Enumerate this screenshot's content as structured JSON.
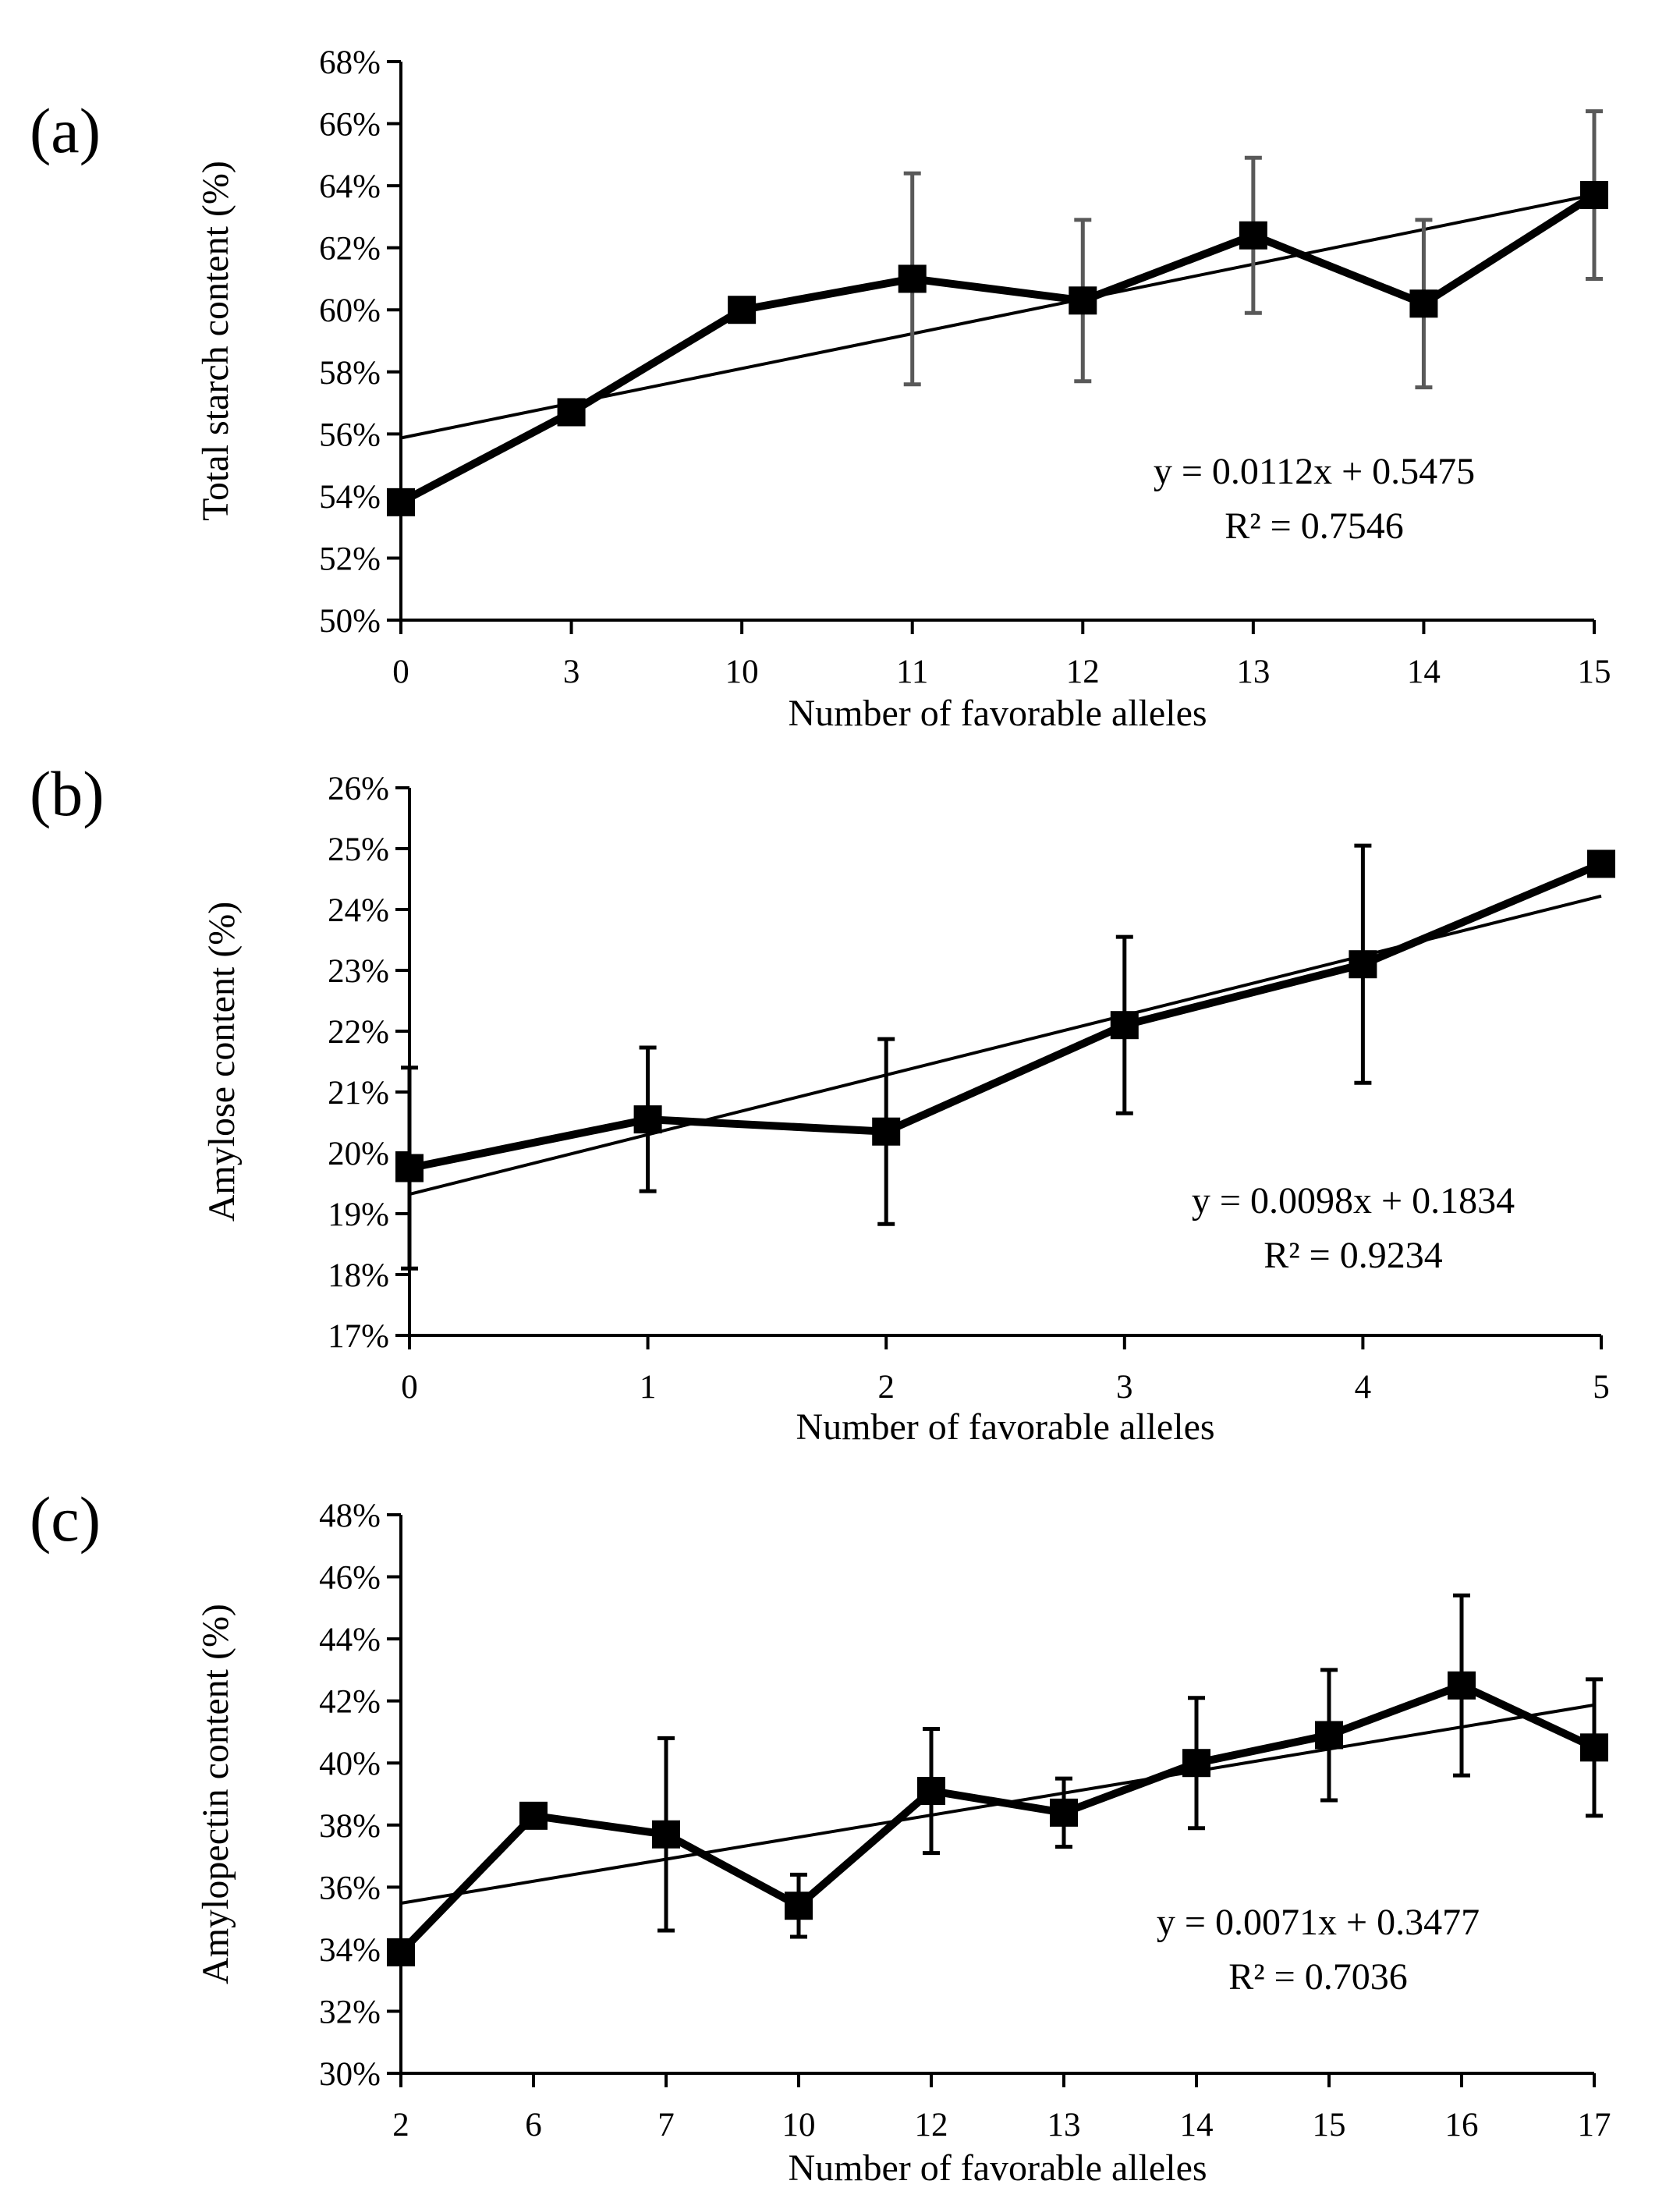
{
  "chart_data": [
    {
      "type": "line",
      "panel_label": "(a)",
      "xlabel": "Number of favorable alleles",
      "ylabel": "Total starch  content (%)",
      "categories": [
        "0",
        "3",
        "10",
        "11",
        "12",
        "13",
        "14",
        "15"
      ],
      "y_tick_labels": [
        "50%",
        "52%",
        "54%",
        "56%",
        "58%",
        "60%",
        "62%",
        "64%",
        "66%",
        "68%"
      ],
      "ylim": [
        0.5,
        0.68
      ],
      "grid": false,
      "series": [
        {
          "values": [
            0.538,
            0.567,
            0.6,
            0.61,
            0.603,
            0.624,
            0.602,
            0.637
          ],
          "error": [
            0,
            0,
            0,
            0.034,
            0.026,
            0.025,
            0.027,
            0.027
          ]
        }
      ],
      "error_bar_color": "#595959",
      "trendline": {
        "slope": 0.0112,
        "intercept": 0.5475
      },
      "equation": "y = 0.0112x  + 0.5475",
      "r_squared": "R² = 0.7546"
    },
    {
      "type": "line",
      "panel_label": "(b)",
      "xlabel": "Number of  favorable  alleles",
      "ylabel": "Amylose  content (%)",
      "categories": [
        "0",
        "1",
        "2",
        "3",
        "4",
        "5"
      ],
      "y_tick_labels": [
        "17%",
        "18%",
        "19%",
        "20%",
        "21%",
        "22%",
        "23%",
        "24%",
        "25%",
        "26%"
      ],
      "ylim": [
        0.17,
        0.26
      ],
      "grid": false,
      "series": [
        {
          "values": [
            0.1975,
            0.2055,
            0.2035,
            0.221,
            0.231,
            0.2475
          ],
          "error": [
            0.0165,
            0.0118,
            0.0152,
            0.0145,
            0.0195,
            0
          ]
        }
      ],
      "error_bar_color": "#000000",
      "trendline": {
        "slope": 0.0098,
        "intercept": 0.1834
      },
      "equation": "y = 0.0098x  + 0.1834",
      "r_squared": "R² = 0.9234"
    },
    {
      "type": "line",
      "panel_label": "(c)",
      "xlabel": "Number of  favorable  alleles",
      "ylabel": "Amylopectin  content (%)",
      "categories": [
        "2",
        "6",
        "7",
        "10",
        "12",
        "13",
        "14",
        "15",
        "16",
        "17"
      ],
      "y_tick_labels": [
        "30%",
        "32%",
        "34%",
        "36%",
        "38%",
        "40%",
        "42%",
        "44%",
        "46%",
        "48%"
      ],
      "ylim": [
        0.3,
        0.48
      ],
      "grid": false,
      "series": [
        {
          "values": [
            0.339,
            0.383,
            0.377,
            0.354,
            0.391,
            0.384,
            0.4,
            0.409,
            0.425,
            0.405
          ],
          "error": [
            0,
            0,
            0.031,
            0.01,
            0.02,
            0.011,
            0.021,
            0.021,
            0.029,
            0.022
          ]
        }
      ],
      "error_bar_color": "#000000",
      "trendline": {
        "slope": 0.0071,
        "intercept": 0.3477
      },
      "equation": "y = 0.0071x  + 0.3477",
      "r_squared": "R² = 0.7036"
    }
  ]
}
